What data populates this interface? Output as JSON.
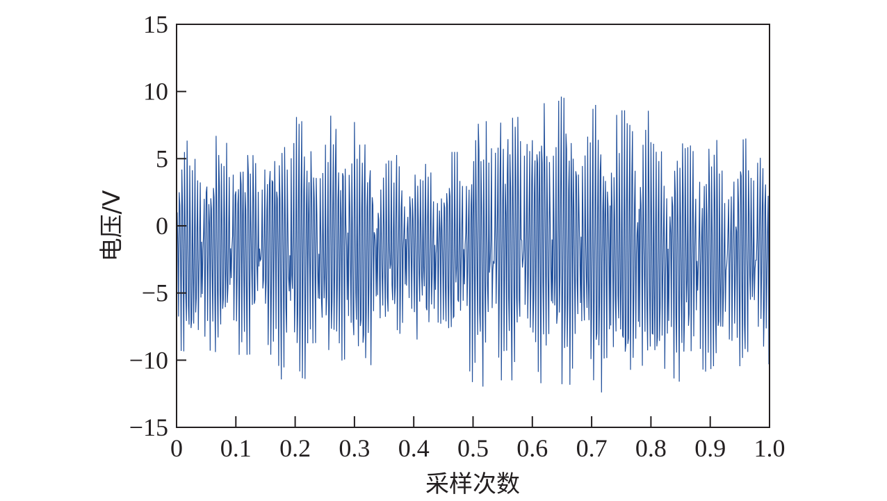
{
  "chart_data": {
    "type": "line",
    "title": "",
    "xlabel": "采样次数",
    "ylabel": "电压/V",
    "xlim": [
      0,
      1.0
    ],
    "ylim": [
      -15,
      15
    ],
    "x_ticks": [
      0,
      0.1,
      0.2,
      0.3,
      0.4,
      0.5,
      0.6,
      0.7,
      0.8,
      0.9,
      1.0
    ],
    "x_tick_labels": [
      "0",
      "0.1",
      "0.2",
      "0.3",
      "0.4",
      "0.5",
      "0.6",
      "0.7",
      "0.8",
      "0.9",
      "1.0"
    ],
    "y_ticks": [
      15,
      10,
      5,
      0,
      -5,
      -10,
      -15
    ],
    "y_tick_labels": [
      "15",
      "10",
      "5",
      "0",
      "−5",
      "−10",
      "−15"
    ],
    "grid": false,
    "line_color": "#1f4e9a",
    "series": [
      {
        "name": "",
        "description_of_envelope": null,
        "x": [
          0.0,
          0.02,
          0.04,
          0.06,
          0.08,
          0.1,
          0.12,
          0.14,
          0.16,
          0.18,
          0.2,
          0.22,
          0.24,
          0.26,
          0.28,
          0.3,
          0.32,
          0.34,
          0.36,
          0.38,
          0.4,
          0.42,
          0.44,
          0.46,
          0.48,
          0.5,
          0.52,
          0.54,
          0.56,
          0.58,
          0.6,
          0.62,
          0.64,
          0.66,
          0.68,
          0.7,
          0.72,
          0.74,
          0.76,
          0.78,
          0.8,
          0.82,
          0.84,
          0.86,
          0.88,
          0.9,
          0.92,
          0.94,
          0.96,
          0.98,
          1.0
        ],
        "upper": [
          5.5,
          6.7,
          6.7,
          6.7,
          6.7,
          6.7,
          6.7,
          6.7,
          6.8,
          8.0,
          8.1,
          8.1,
          8.1,
          8.2,
          8.2,
          8.2,
          7.2,
          5.0,
          5.6,
          5.0,
          5.2,
          5.6,
          5.0,
          5.5,
          5.5,
          9.0,
          9.0,
          9.0,
          9.0,
          9.5,
          9.5,
          10.7,
          9.0,
          10.4,
          9.0,
          9.0,
          9.0,
          8.6,
          8.6,
          8.8,
          8.5,
          7.0,
          7.0,
          7.0,
          6.8,
          6.5,
          6.3,
          6.2,
          6.5,
          7.2,
          5.5
        ],
        "lower": [
          -9.0,
          -9.8,
          -9.8,
          -9.8,
          -9.6,
          -9.6,
          -9.6,
          -9.5,
          -9.6,
          -11.8,
          -11.4,
          -11.4,
          -11.4,
          -11.4,
          -11.4,
          -11.4,
          -11.4,
          -9.0,
          -8.5,
          -8.2,
          -8.5,
          -8.8,
          -9.0,
          -8.6,
          -8.8,
          -11.8,
          -12.0,
          -11.5,
          -11.5,
          -11.5,
          -11.5,
          -11.8,
          -12.0,
          -11.8,
          -12.0,
          -12.4,
          -12.4,
          -11.8,
          -12.5,
          -12.5,
          -13.0,
          -12.0,
          -11.8,
          -11.5,
          -11.0,
          -10.8,
          -10.6,
          -10.5,
          -10.4,
          -10.4,
          -10.3
        ]
      }
    ]
  }
}
